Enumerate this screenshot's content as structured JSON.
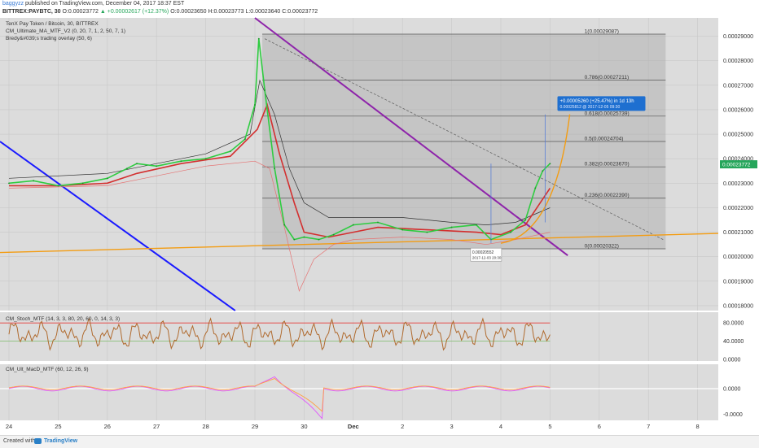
{
  "header": {
    "author": "baggyzz",
    "published": "published on TradingView.com, December 04, 2017 18:37 EST",
    "symbol": "BITTREX:PAYBTC, 30",
    "open_label": "O:",
    "open": "0.00023772",
    "change": "▲ +0.00002617 (+12.37%)",
    "ohlc_tail": "O:0.00023650 H:0.00023773 L:0.00023640 C:0.00023772"
  },
  "chart_title": "TenX Pay Token / Bitcoin, 30, BITTREX",
  "indicators": {
    "main1": "CM_Ultimate_MA_MTF_V2 (0, 20, 7, 1, 2, 50, 7, 1)",
    "main2": "Bredy&#039;s trading overlay (50, 6)",
    "stoch": "CM_Stoch_MTF (14, 3, 3, 80, 20, 60, 0, 14, 3, 3)",
    "macd": "CM_Ult_MacD_MTF (60, 12, 26, 9)"
  },
  "x_axis": [
    "24",
    "25",
    "26",
    "27",
    "28",
    "29",
    "30",
    "Dec",
    "2",
    "3",
    "4",
    "5",
    "6",
    "7",
    "8"
  ],
  "price_axis": [
    "0.00029000",
    "0.00028000",
    "0.00027000",
    "0.00026000",
    "0.00025000",
    "0.00024000",
    "0.00023000",
    "0.00022000",
    "0.00021000",
    "0.00020000",
    "0.00019000",
    "0.00018000"
  ],
  "price_current": "0.00023772",
  "stoch_axis": [
    "80.0000",
    "40.0000",
    "0.0000"
  ],
  "macd_axis": [
    "0.0000",
    "-0.0000"
  ],
  "fib_levels": [
    {
      "label": "1(0.00029087)",
      "value": 0.00029087
    },
    {
      "label": "0.786(0.00027211)",
      "value": 0.00027211
    },
    {
      "label": "0.618(0.00025739)",
      "value": 0.00025739
    },
    {
      "label": "0.5(0.00024704)",
      "value": 0.00024704
    },
    {
      "label": "0.382(0.00023670)",
      "value": 0.0002367
    },
    {
      "label": "0.236(0.00022390)",
      "value": 0.0002239
    },
    {
      "label": "0(0.00020322)",
      "value": 0.00020322
    }
  ],
  "annotation_target": {
    "line1": "+0.00005260 (+25.47%) in 1d 13h",
    "line2": "0.00025812  @ 2017-12-05  09:30"
  },
  "annotation_low": {
    "line1": "0.00020552",
    "line2": "2017-12-03 20:30"
  },
  "footer": {
    "created": "Created with",
    "brand": "TradingView"
  },
  "chart_data": {
    "type": "line",
    "title": "TenX Pay Token / Bitcoin, 30, BITTREX",
    "x_ticks": [
      "24",
      "25",
      "26",
      "27",
      "28",
      "29",
      "30",
      "Dec",
      "2",
      "3",
      "4",
      "5",
      "6",
      "7",
      "8"
    ],
    "ylim": [
      0.000178,
      0.0002975
    ],
    "series": [
      {
        "name": "PAYBTC",
        "x": [
          24.0,
          24.5,
          25.0,
          25.5,
          26.0,
          26.4,
          26.6,
          27.0,
          27.5,
          28.0,
          28.5,
          28.8,
          29.0,
          29.08,
          29.2,
          29.4,
          29.6,
          29.8,
          30.0,
          30.3,
          30.6,
          31.0,
          31.5,
          32.0,
          32.5,
          33.0,
          33.5,
          33.8,
          34.2,
          34.5,
          34.7,
          34.85,
          35.0
        ],
        "y": [
          0.00023,
          0.000231,
          0.000229,
          0.00023,
          0.000232,
          0.000236,
          0.000238,
          0.000237,
          0.000239,
          0.00024,
          0.000243,
          0.000248,
          0.000262,
          0.000289,
          0.000268,
          0.000236,
          0.000213,
          0.000207,
          0.000208,
          0.000207,
          0.000209,
          0.000213,
          0.000214,
          0.000211,
          0.00021,
          0.000212,
          0.000213,
          0.000207,
          0.00021,
          0.000215,
          0.000228,
          0.000235,
          0.000238
        ]
      }
    ],
    "fib_levels": [
      0.00029087,
      0.00027211,
      0.00025739,
      0.00024704,
      0.0002367,
      0.0002239,
      0.00020322
    ],
    "stoch_ylim": [
      0,
      100
    ],
    "stoch_levels": [
      80,
      40
    ],
    "grid": true,
    "legend": "top-left"
  }
}
